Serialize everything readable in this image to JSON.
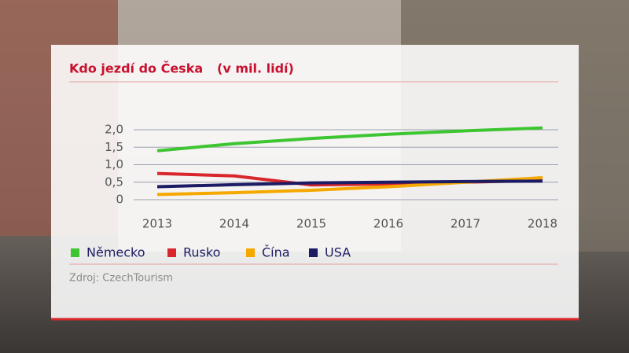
{
  "chart_data": {
    "type": "line",
    "title": "Kdo jezdí do Česka",
    "subtitle": "(v mil. lidí)",
    "categories": [
      "2013",
      "2014",
      "2015",
      "2016",
      "2017",
      "2018"
    ],
    "series": [
      {
        "name": "Německo",
        "color": "#3ec532",
        "values": [
          1.4,
          1.6,
          1.75,
          1.87,
          1.97,
          2.05
        ]
      },
      {
        "name": "Rusko",
        "color": "#d8262b",
        "values": [
          0.75,
          0.68,
          0.42,
          0.45,
          0.5,
          0.55
        ]
      },
      {
        "name": "Čína",
        "color": "#f5a800",
        "values": [
          0.15,
          0.2,
          0.27,
          0.37,
          0.5,
          0.63
        ]
      },
      {
        "name": "USA",
        "color": "#1c1c64",
        "values": [
          0.37,
          0.43,
          0.48,
          0.5,
          0.52,
          0.53
        ]
      }
    ],
    "ylim": [
      0,
      2.0
    ],
    "yticks": [
      0,
      {
        "value": 0.5,
        "label": "0,5"
      },
      {
        "value": 1.0,
        "label": "1,0"
      },
      {
        "value": 1.5,
        "label": "1,5"
      },
      {
        "value": 2.0,
        "label": "2,0"
      }
    ],
    "grid": true,
    "source": "Zdroj: CzechTourism"
  }
}
